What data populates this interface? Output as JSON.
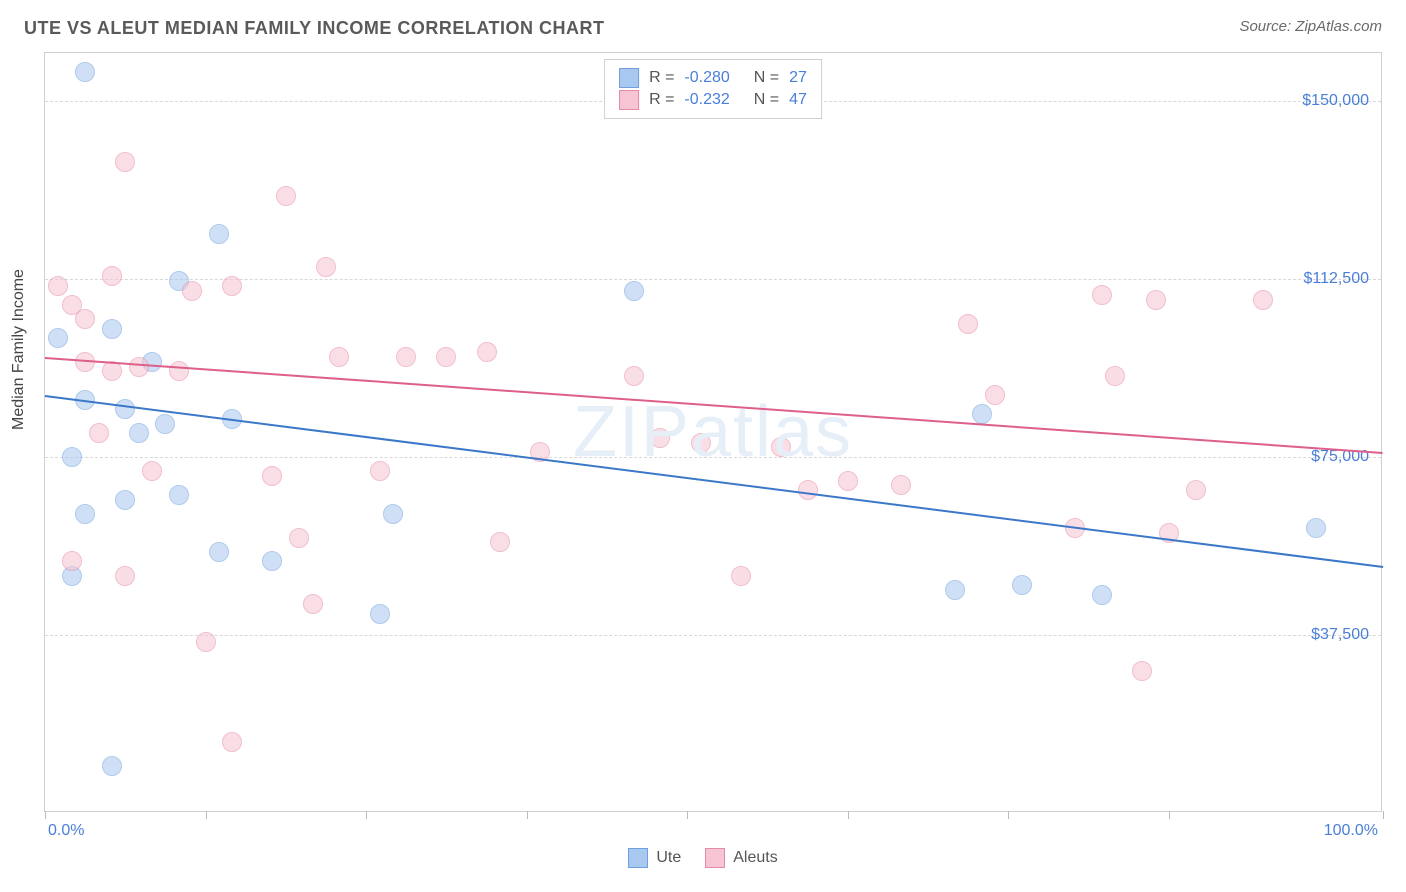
{
  "header": {
    "title": "UTE VS ALEUT MEDIAN FAMILY INCOME CORRELATION CHART",
    "source": "Source: ZipAtlas.com"
  },
  "watermark": {
    "text": "ZIPatlas",
    "color": "#e6eef8"
  },
  "chart": {
    "type": "scatter",
    "background_color": "#ffffff",
    "border_color": "#d0d0d0",
    "grid_color": "#d8d8d8",
    "ylabel": "Median Family Income",
    "ylabel_fontsize": 16,
    "ylabel_color": "#444444",
    "xlim": [
      0,
      100
    ],
    "ylim": [
      0,
      160000
    ],
    "xtick_positions": [
      0,
      12,
      24,
      36,
      48,
      60,
      72,
      84,
      100
    ],
    "xtick_labels": {
      "left": "0.0%",
      "right": "100.0%"
    },
    "ytick_positions": [
      37500,
      75000,
      112500,
      150000
    ],
    "ytick_labels": [
      "$37,500",
      "$75,000",
      "$112,500",
      "$150,000"
    ],
    "tick_label_color": "#4a7fd8",
    "tick_label_fontsize": 16,
    "marker_radius": 10,
    "marker_opacity": 0.55,
    "series": [
      {
        "name": "Ute",
        "fill_color": "#a9c8ef",
        "stroke_color": "#6fa0de",
        "line_color": "#3b78c9",
        "R": "-0.280",
        "N": "27",
        "trend": {
          "x1": 0,
          "y1": 88000,
          "x2": 100,
          "y2": 52000
        },
        "points": [
          {
            "x": 3,
            "y": 156000
          },
          {
            "x": 5,
            "y": 102000
          },
          {
            "x": 10,
            "y": 112000
          },
          {
            "x": 13,
            "y": 122000
          },
          {
            "x": 3,
            "y": 87000
          },
          {
            "x": 6,
            "y": 85000
          },
          {
            "x": 2,
            "y": 75000
          },
          {
            "x": 7,
            "y": 80000
          },
          {
            "x": 9,
            "y": 82000
          },
          {
            "x": 3,
            "y": 63000
          },
          {
            "x": 2,
            "y": 50000
          },
          {
            "x": 6,
            "y": 66000
          },
          {
            "x": 10,
            "y": 67000
          },
          {
            "x": 14,
            "y": 83000
          },
          {
            "x": 13,
            "y": 55000
          },
          {
            "x": 17,
            "y": 53000
          },
          {
            "x": 25,
            "y": 42000
          },
          {
            "x": 26,
            "y": 63000
          },
          {
            "x": 44,
            "y": 110000
          },
          {
            "x": 5,
            "y": 10000
          },
          {
            "x": 68,
            "y": 47000
          },
          {
            "x": 70,
            "y": 84000
          },
          {
            "x": 73,
            "y": 48000
          },
          {
            "x": 79,
            "y": 46000
          },
          {
            "x": 95,
            "y": 60000
          },
          {
            "x": 1,
            "y": 100000
          },
          {
            "x": 8,
            "y": 95000
          }
        ]
      },
      {
        "name": "Aleuts",
        "fill_color": "#f6c4d2",
        "stroke_color": "#e48ca5",
        "line_color": "#de5f8a",
        "R": "-0.232",
        "N": "47",
        "trend": {
          "x1": 0,
          "y1": 96000,
          "x2": 100,
          "y2": 76000
        },
        "points": [
          {
            "x": 1,
            "y": 111000
          },
          {
            "x": 2,
            "y": 107000
          },
          {
            "x": 3,
            "y": 104000
          },
          {
            "x": 6,
            "y": 137000
          },
          {
            "x": 11,
            "y": 110000
          },
          {
            "x": 14,
            "y": 111000
          },
          {
            "x": 18,
            "y": 130000
          },
          {
            "x": 21,
            "y": 115000
          },
          {
            "x": 5,
            "y": 93000
          },
          {
            "x": 7,
            "y": 94000
          },
          {
            "x": 10,
            "y": 93000
          },
          {
            "x": 4,
            "y": 80000
          },
          {
            "x": 6,
            "y": 50000
          },
          {
            "x": 8,
            "y": 72000
          },
          {
            "x": 2,
            "y": 53000
          },
          {
            "x": 12,
            "y": 36000
          },
          {
            "x": 14,
            "y": 15000
          },
          {
            "x": 17,
            "y": 71000
          },
          {
            "x": 19,
            "y": 58000
          },
          {
            "x": 20,
            "y": 44000
          },
          {
            "x": 22,
            "y": 96000
          },
          {
            "x": 25,
            "y": 72000
          },
          {
            "x": 30,
            "y": 96000
          },
          {
            "x": 34,
            "y": 57000
          },
          {
            "x": 37,
            "y": 76000
          },
          {
            "x": 44,
            "y": 92000
          },
          {
            "x": 46,
            "y": 79000
          },
          {
            "x": 49,
            "y": 78000
          },
          {
            "x": 52,
            "y": 50000
          },
          {
            "x": 55,
            "y": 77000
          },
          {
            "x": 57,
            "y": 68000
          },
          {
            "x": 60,
            "y": 70000
          },
          {
            "x": 64,
            "y": 69000
          },
          {
            "x": 69,
            "y": 103000
          },
          {
            "x": 71,
            "y": 88000
          },
          {
            "x": 77,
            "y": 60000
          },
          {
            "x": 79,
            "y": 109000
          },
          {
            "x": 80,
            "y": 92000
          },
          {
            "x": 82,
            "y": 30000
          },
          {
            "x": 83,
            "y": 108000
          },
          {
            "x": 84,
            "y": 59000
          },
          {
            "x": 86,
            "y": 68000
          },
          {
            "x": 91,
            "y": 108000
          },
          {
            "x": 5,
            "y": 113000
          },
          {
            "x": 3,
            "y": 95000
          },
          {
            "x": 27,
            "y": 96000
          },
          {
            "x": 33,
            "y": 97000
          }
        ]
      }
    ],
    "legend_bottom_labels": [
      "Ute",
      "Aleuts"
    ]
  }
}
